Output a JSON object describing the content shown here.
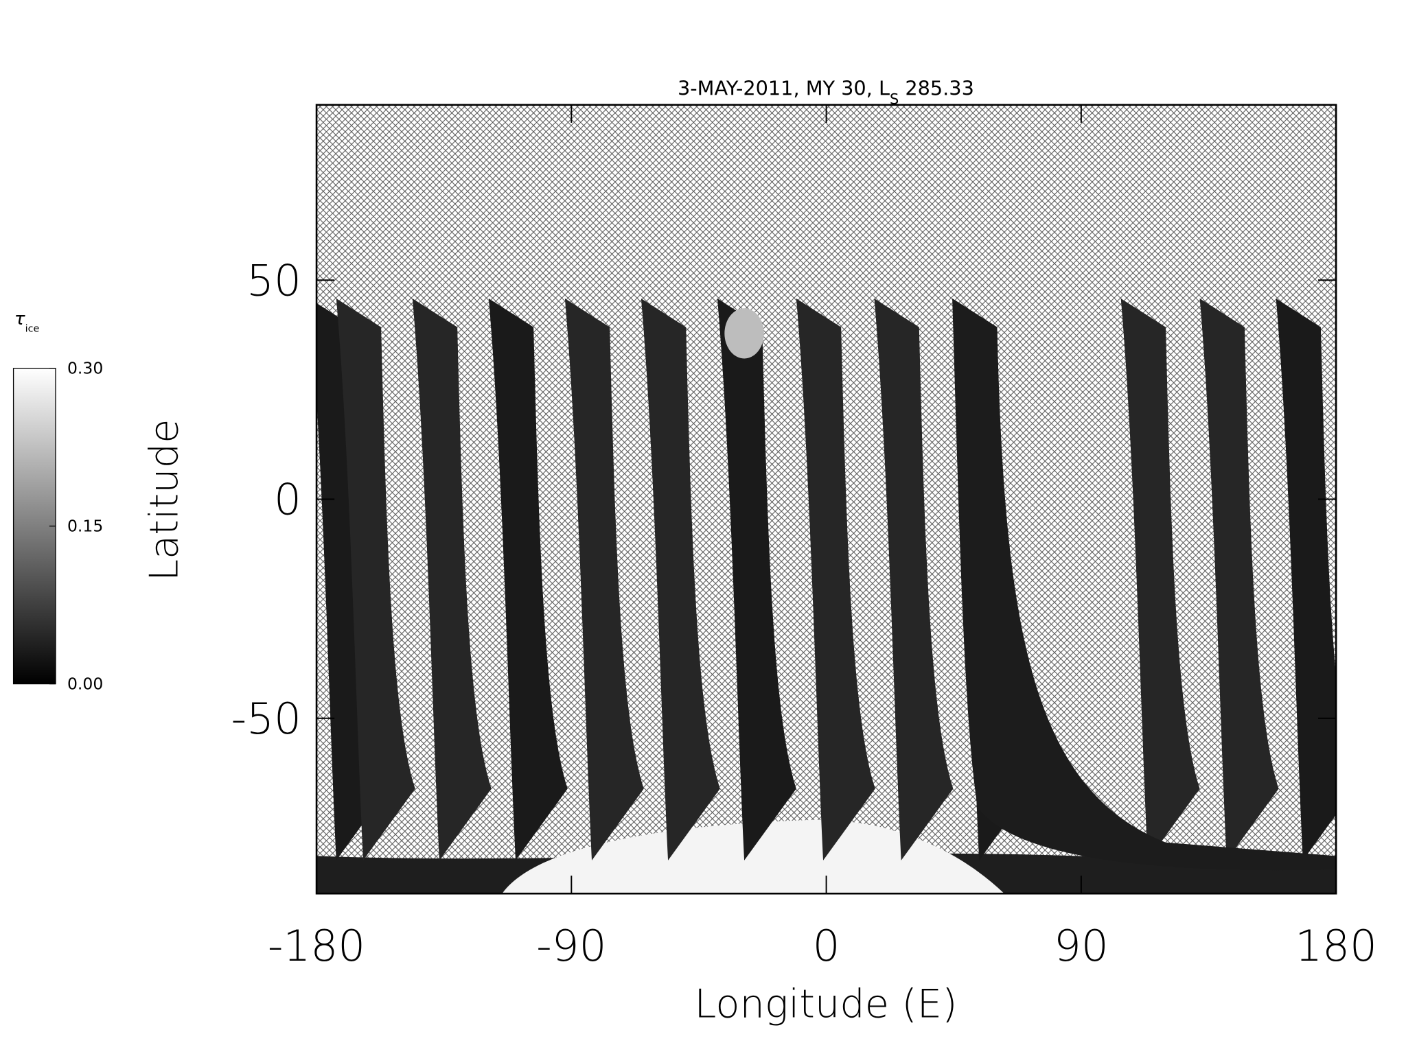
{
  "chart_data": {
    "type": "map",
    "title": "3-MAY-2011, MY 30,  L",
    "title_subscript": "S",
    "title_suffix": " 285.33",
    "xlabel": "Longitude (E)",
    "ylabel": "Latitude",
    "xlim": [
      -180,
      180
    ],
    "xticks": [
      -180,
      -90,
      0,
      90,
      180
    ],
    "ylim": [
      -90,
      90
    ],
    "yticks": [
      -50,
      0,
      50
    ],
    "colorbar": {
      "label": "τ",
      "label_subscript": "ice",
      "lim": [
        0,
        0.3
      ],
      "ticks": [
        {
          "value": 0,
          "label": "0.00"
        },
        {
          "value": 0.15,
          "label": "0.15"
        },
        {
          "value": 0.3,
          "label": "0.30"
        }
      ],
      "colors": [
        "#000000",
        "#ffffff"
      ]
    }
  }
}
